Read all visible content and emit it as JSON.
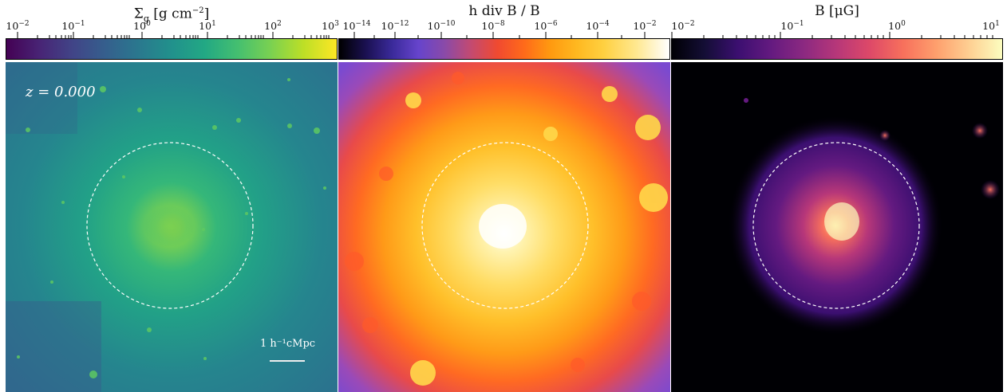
{
  "figure": {
    "redshift_label": "z = 0.000",
    "scale_bar_label": "1 h⁻¹cMpc",
    "panels": [
      {
        "title": "Σg [g cm⁻²]",
        "colormap": "viridis",
        "ticks": [
          "10-2",
          "10-1",
          "100",
          "101",
          "102",
          "103"
        ]
      },
      {
        "title": "h div B / B",
        "colormap": "gnuplot2/CMRmap-like",
        "ticks": [
          "10-14",
          "10-12",
          "10-10",
          "10-8",
          "10-6",
          "10-4",
          "10-2"
        ]
      },
      {
        "title": "B [μG]",
        "colormap": "magma",
        "ticks": [
          "10-2",
          "10-1",
          "100",
          "101"
        ]
      }
    ]
  }
}
